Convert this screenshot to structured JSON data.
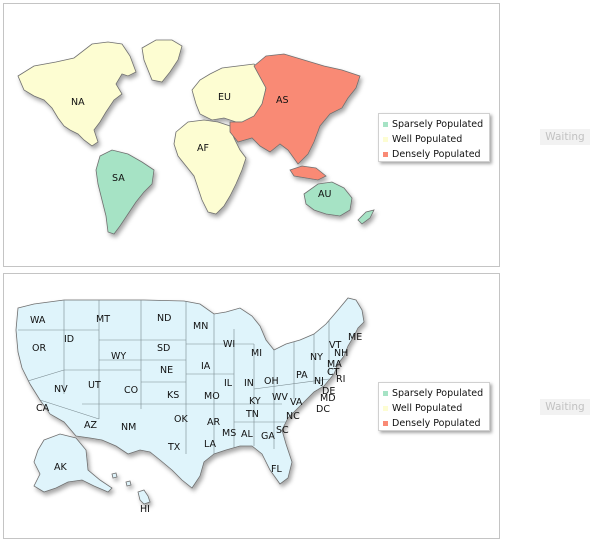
{
  "maps": [
    {
      "id": "world",
      "regions": [
        {
          "code": "NA",
          "status": "Well Populated"
        },
        {
          "code": "SA",
          "status": "Sparsely Populated"
        },
        {
          "code": "EU",
          "status": "Well Populated"
        },
        {
          "code": "AF",
          "status": "Well Populated"
        },
        {
          "code": "AS",
          "status": "Densely Populated"
        },
        {
          "code": "AU",
          "status": "Sparsely Populated"
        }
      ],
      "legend": [
        {
          "label": "Sparsely Populated",
          "color": "#a6e3c5"
        },
        {
          "label": "Well Populated",
          "color": "#fdfdd2"
        },
        {
          "label": "Densely Populated",
          "color": "#f98a75"
        }
      ],
      "waiting": "Waiting"
    },
    {
      "id": "usa",
      "fill_color": "#dff4fb",
      "states": [
        "WA",
        "MT",
        "ND",
        "MN",
        "OR",
        "ID",
        "SD",
        "WI",
        "VT",
        "ME",
        "WY",
        "NH",
        "NY",
        "MA",
        "MI",
        "CT",
        "NE",
        "IA",
        "UT",
        "NV",
        "PA",
        "RI",
        "OH",
        "IL",
        "IN",
        "NJ",
        "CO",
        "KS",
        "WV",
        "DE",
        "MO",
        "MD",
        "VA",
        "KY",
        "DC",
        "CA",
        "AZ",
        "OK",
        "TN",
        "NC",
        "NM",
        "AR",
        "SC",
        "MS",
        "AL",
        "GA",
        "TX",
        "LA",
        "FL",
        "AK",
        "HI"
      ],
      "legend": [
        {
          "label": "Sparsely Populated",
          "color": "#a6e3c5"
        },
        {
          "label": "Well Populated",
          "color": "#fdfdd2"
        },
        {
          "label": "Densely Populated",
          "color": "#f98a75"
        }
      ],
      "waiting": "Waiting"
    }
  ]
}
